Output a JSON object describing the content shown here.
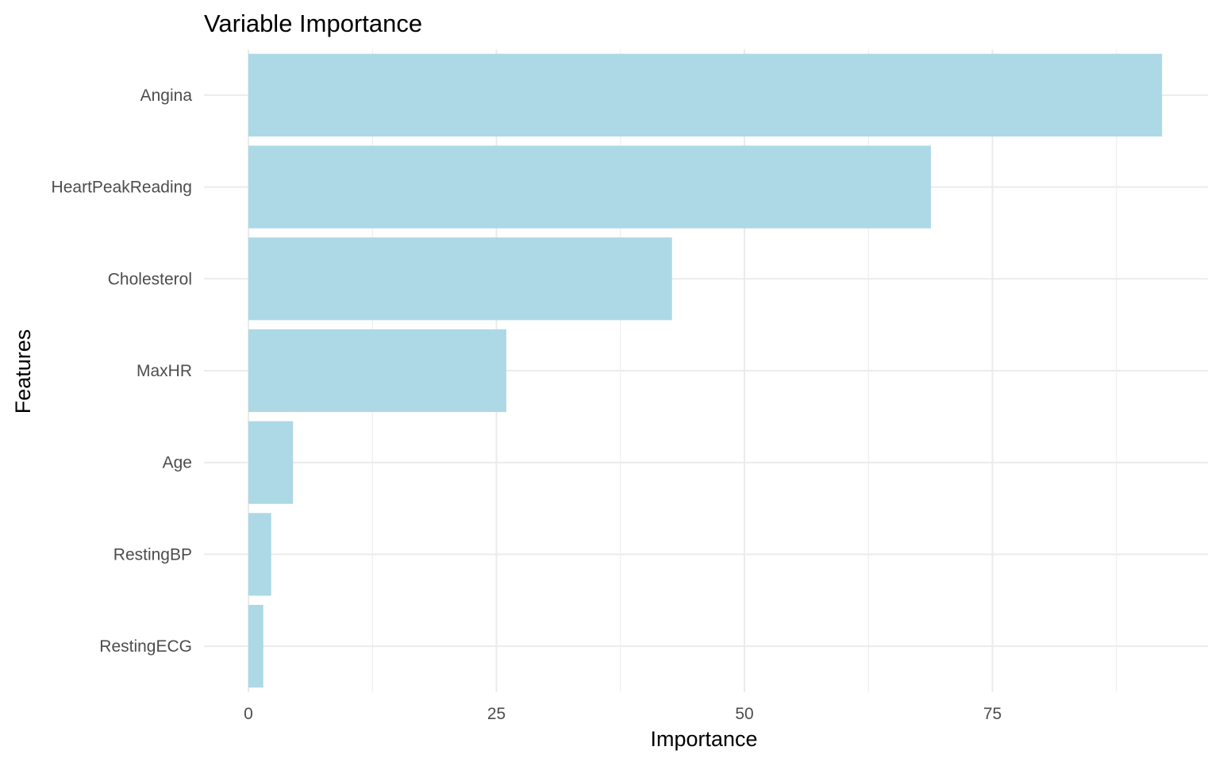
{
  "chart_data": {
    "type": "bar",
    "orientation": "horizontal",
    "title": "Variable Importance",
    "xlabel": "Importance",
    "ylabel": "Features",
    "categories": [
      "Angina",
      "HeartPeakReading",
      "Cholesterol",
      "MaxHR",
      "Age",
      "RestingBP",
      "RestingECG"
    ],
    "values": [
      92.1,
      68.8,
      42.7,
      26.0,
      4.5,
      2.3,
      1.5
    ],
    "xlim": [
      0,
      97
    ],
    "xticks": [
      0,
      25,
      50,
      75
    ],
    "xtick_labels": [
      "0",
      "25",
      "50",
      "75"
    ],
    "bar_color": "#add8e6",
    "grid": true,
    "legend": "none"
  }
}
